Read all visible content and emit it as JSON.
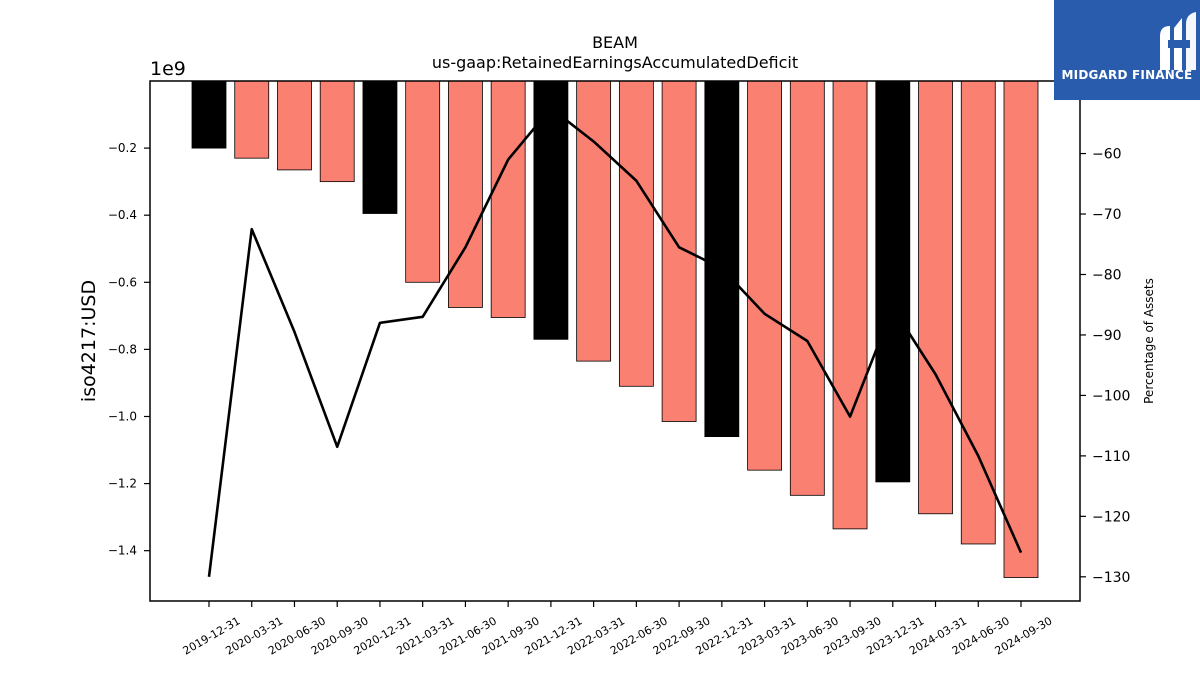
{
  "brand": {
    "name": "MIDGARD FINANCE",
    "bg_color": "#2a5cad"
  },
  "chart_data": {
    "type": "bar",
    "title": "BEAM",
    "subtitle": "us-gaap:RetainedEarningsAccumulatedDeficit",
    "ylabel": "iso4217:USD",
    "y_multiplier_label": "1e9",
    "y2label": "Percentage of Assets",
    "ylim": [
      -1.55,
      0
    ],
    "y2lim": [
      -134,
      -48
    ],
    "y_ticks": [
      -0.2,
      -0.4,
      -0.6,
      -0.8,
      -1.0,
      -1.2,
      -1.4
    ],
    "y_tick_labels": [
      "−0.2",
      "−0.4",
      "−0.6",
      "−0.8",
      "−1.0",
      "−1.2",
      "−1.4"
    ],
    "y2_ticks": [
      -60,
      -70,
      -80,
      -90,
      -100,
      -110,
      -120,
      -130
    ],
    "y2_tick_labels": [
      "−60",
      "−70",
      "−80",
      "−90",
      "−100",
      "−110",
      "−120",
      "−130"
    ],
    "grid": false,
    "categories": [
      "2019-12-31",
      "2020-03-31",
      "2020-06-30",
      "2020-09-30",
      "2020-12-31",
      "2021-03-31",
      "2021-06-30",
      "2021-09-30",
      "2021-12-31",
      "2022-03-31",
      "2022-06-30",
      "2022-09-30",
      "2022-12-31",
      "2023-03-31",
      "2023-06-30",
      "2023-09-30",
      "2023-12-31",
      "2024-03-31",
      "2024-06-30",
      "2024-09-30"
    ],
    "series": [
      {
        "type": "bar",
        "axis": "left",
        "values": [
          -0.2,
          -0.23,
          -0.265,
          -0.3,
          -0.395,
          -0.6,
          -0.675,
          -0.705,
          -0.77,
          -0.835,
          -0.91,
          -1.015,
          -1.06,
          -1.16,
          -1.235,
          -1.335,
          -1.195,
          -1.29,
          -1.38,
          -1.48
        ],
        "colors": [
          "#000000",
          "#fa8072",
          "#fa8072",
          "#fa8072",
          "#000000",
          "#fa8072",
          "#fa8072",
          "#fa8072",
          "#000000",
          "#fa8072",
          "#fa8072",
          "#fa8072",
          "#000000",
          "#fa8072",
          "#fa8072",
          "#fa8072",
          "#000000",
          "#fa8072",
          "#fa8072",
          "#fa8072"
        ]
      },
      {
        "type": "line",
        "axis": "right",
        "color": "#000000",
        "values": [
          -130.0,
          -72.5,
          -89.5,
          -108.5,
          -88.0,
          -87.0,
          -75.5,
          -61.0,
          -52.5,
          -58.0,
          -64.5,
          -75.5,
          -79.0,
          -86.5,
          -91.0,
          -103.5,
          -85.5,
          -96.5,
          -110.0,
          -126.0
        ]
      }
    ]
  }
}
